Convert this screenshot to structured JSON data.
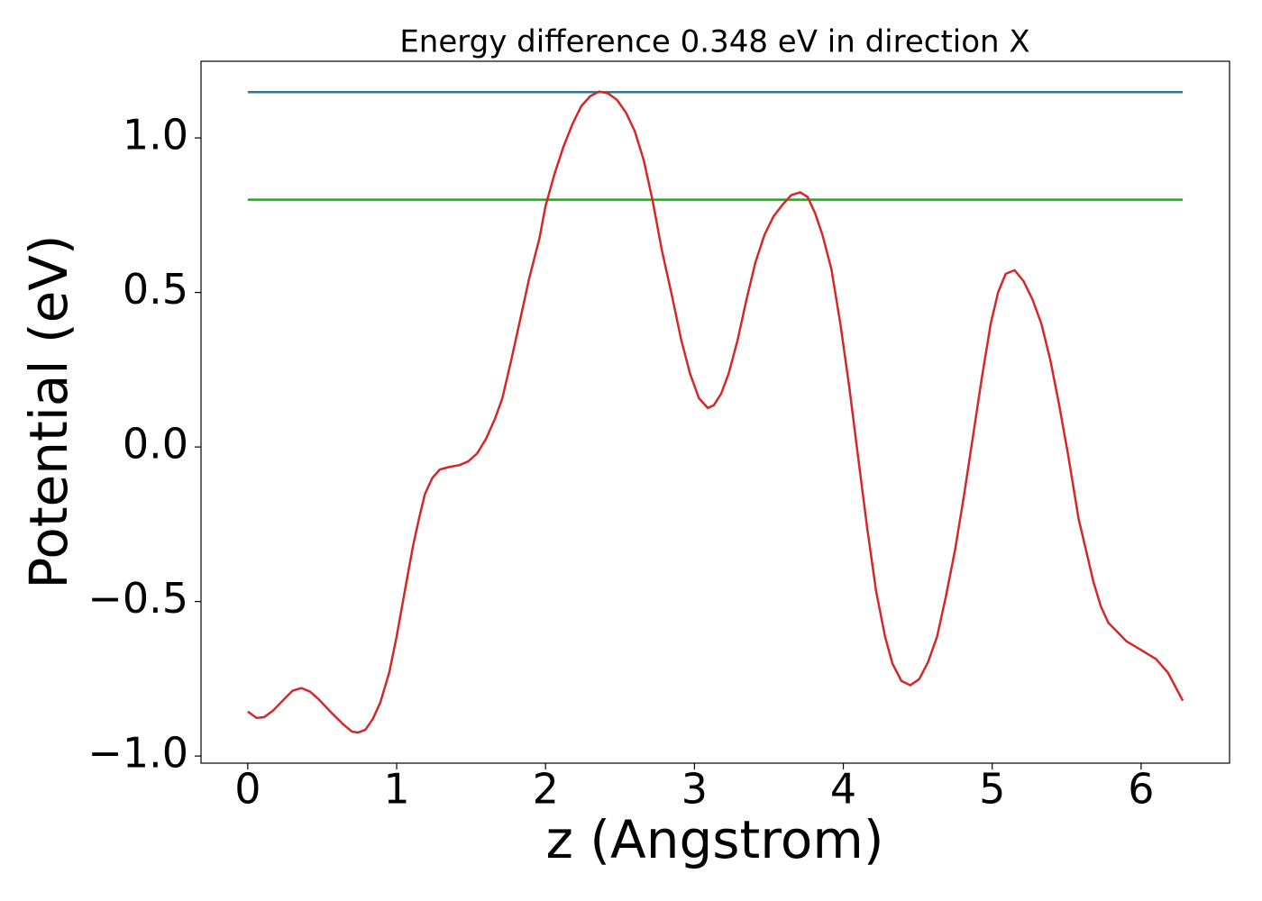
{
  "chart_data": {
    "type": "line",
    "title": "Energy difference 0.348 eV in direction X",
    "xlabel": "z (Angstrom)",
    "ylabel": "Potential (eV)",
    "xlim": [
      -0.314,
      6.594
    ],
    "ylim": [
      -1.023,
      1.248
    ],
    "xticks": [
      0,
      1,
      2,
      3,
      4,
      5,
      6
    ],
    "yticks": [
      {
        "value": -1.0,
        "label": "−1.0"
      },
      {
        "value": -0.5,
        "label": "−0.5"
      },
      {
        "value": 0.0,
        "label": "0.0"
      },
      {
        "value": 0.5,
        "label": "0.5"
      },
      {
        "value": 1.0,
        "label": "1.0"
      }
    ],
    "series": [
      {
        "color": "#1f77b4",
        "x": [
          0,
          6.28
        ],
        "values": [
          1.148,
          1.148
        ]
      },
      {
        "color": "#2ca02c",
        "x": [
          0,
          6.28
        ],
        "values": [
          0.8,
          0.8
        ]
      },
      {
        "color": "#d62728",
        "x": [
          0,
          0.06,
          0.11,
          0.17,
          0.24,
          0.3,
          0.36,
          0.42,
          0.48,
          0.56,
          0.64,
          0.7,
          0.74,
          0.79,
          0.84,
          0.89,
          0.95,
          1.0,
          1.06,
          1.11,
          1.15,
          1.19,
          1.24,
          1.29,
          1.35,
          1.42,
          1.48,
          1.54,
          1.6,
          1.66,
          1.71,
          1.77,
          1.83,
          1.89,
          1.96,
          2.0,
          2.06,
          2.12,
          2.18,
          2.24,
          2.3,
          2.36,
          2.42,
          2.48,
          2.54,
          2.6,
          2.66,
          2.72,
          2.78,
          2.85,
          2.91,
          2.97,
          3.03,
          3.09,
          3.13,
          3.18,
          3.23,
          3.29,
          3.35,
          3.41,
          3.47,
          3.53,
          3.59,
          3.65,
          3.71,
          3.76,
          3.81,
          3.86,
          3.92,
          3.98,
          4.04,
          4.1,
          4.16,
          4.22,
          4.28,
          4.33,
          4.39,
          4.45,
          4.51,
          4.57,
          4.63,
          4.69,
          4.75,
          4.81,
          4.87,
          4.93,
          4.99,
          5.04,
          5.09,
          5.15,
          5.21,
          5.27,
          5.33,
          5.39,
          5.45,
          5.51,
          5.58,
          5.63,
          5.68,
          5.73,
          5.78,
          5.84,
          5.9,
          6.0,
          6.1,
          6.18,
          6.28
        ],
        "values": [
          -0.856,
          -0.877,
          -0.874,
          -0.853,
          -0.818,
          -0.789,
          -0.78,
          -0.792,
          -0.818,
          -0.859,
          -0.897,
          -0.921,
          -0.924,
          -0.915,
          -0.88,
          -0.827,
          -0.73,
          -0.613,
          -0.452,
          -0.32,
          -0.232,
          -0.152,
          -0.1,
          -0.073,
          -0.065,
          -0.059,
          -0.047,
          -0.021,
          0.026,
          0.091,
          0.158,
          0.282,
          0.413,
          0.545,
          0.677,
          0.78,
          0.883,
          0.971,
          1.044,
          1.103,
          1.135,
          1.15,
          1.144,
          1.123,
          1.082,
          1.021,
          0.927,
          0.795,
          0.639,
          0.487,
          0.349,
          0.238,
          0.158,
          0.126,
          0.135,
          0.173,
          0.238,
          0.346,
          0.478,
          0.598,
          0.686,
          0.745,
          0.783,
          0.815,
          0.824,
          0.809,
          0.757,
          0.686,
          0.575,
          0.399,
          0.194,
          -0.035,
          -0.261,
          -0.466,
          -0.613,
          -0.701,
          -0.757,
          -0.771,
          -0.751,
          -0.695,
          -0.613,
          -0.481,
          -0.334,
          -0.158,
          0.032,
          0.223,
          0.399,
          0.501,
          0.56,
          0.572,
          0.537,
          0.478,
          0.399,
          0.282,
          0.135,
          -0.026,
          -0.232,
          -0.334,
          -0.437,
          -0.516,
          -0.569,
          -0.598,
          -0.628,
          -0.657,
          -0.686,
          -0.73,
          -0.821
        ]
      }
    ]
  }
}
